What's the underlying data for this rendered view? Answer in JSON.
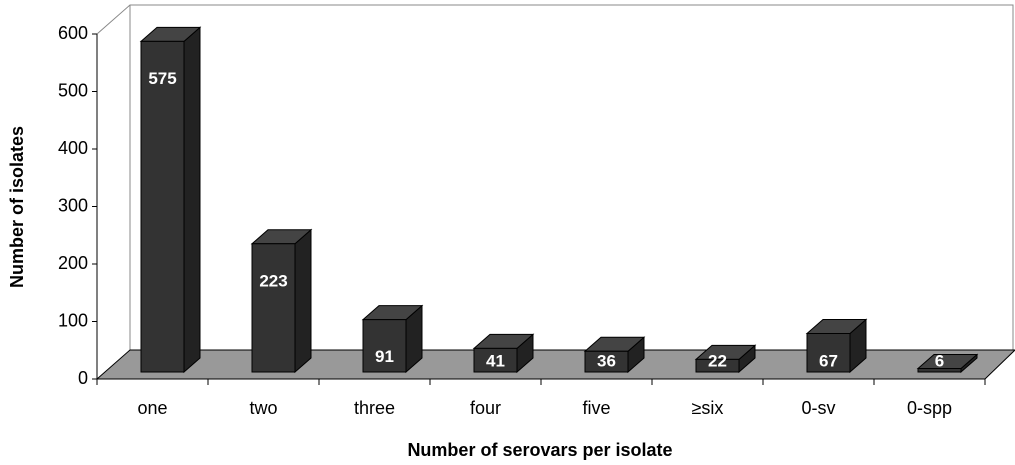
{
  "chart_data": {
    "type": "bar",
    "x_label": "Number of serovars per isolate",
    "y_label": "Number of isolates",
    "categories": [
      "one",
      "two",
      "three",
      "four",
      "five",
      "≥six",
      "0-sv",
      "0-spp"
    ],
    "values": [
      575,
      223,
      91,
      41,
      36,
      22,
      67,
      6
    ],
    "color": "#333333",
    "ylim": [
      0,
      600
    ],
    "yticks": [
      0,
      100,
      200,
      300,
      400,
      500,
      600
    ],
    "grid": false
  }
}
